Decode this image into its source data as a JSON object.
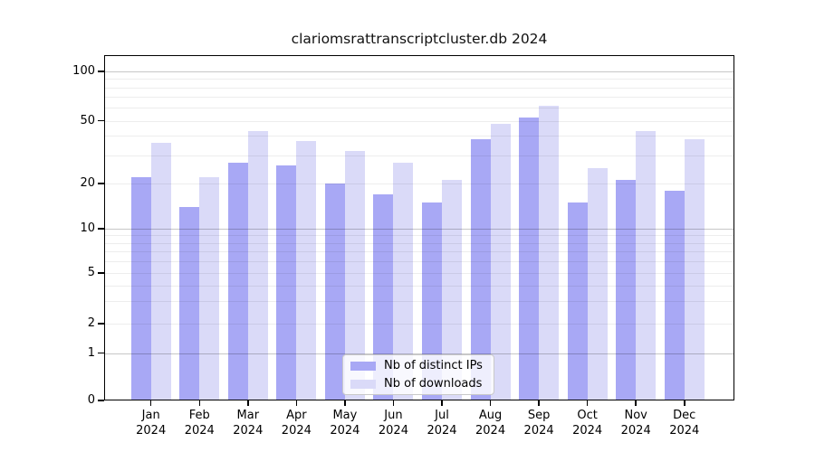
{
  "title": "clariomsrattranscriptcluster.db 2024",
  "legend": {
    "items": [
      {
        "label": "Nb of distinct IPs",
        "color": "#a8a8f5"
      },
      {
        "label": "Nb of downloads",
        "color": "#dadaf8"
      }
    ]
  },
  "colors": {
    "ips_bar": "#a8a8f5",
    "downloads_bar": "#dadaf8",
    "axis": "#000000",
    "major_grid": "#c6c6c6",
    "minor_grid": "#ededed"
  },
  "chart_data": {
    "type": "bar",
    "title": "clariomsrattranscriptcluster.db 2024",
    "categories": [
      "Jan 2024",
      "Feb 2024",
      "Mar 2024",
      "Apr 2024",
      "May 2024",
      "Jun 2024",
      "Jul 2024",
      "Aug 2024",
      "Sep 2024",
      "Oct 2024",
      "Nov 2024",
      "Dec 2024"
    ],
    "month_labels": [
      "Jan",
      "Feb",
      "Mar",
      "Apr",
      "May",
      "Jun",
      "Jul",
      "Aug",
      "Sep",
      "Oct",
      "Nov",
      "Dec"
    ],
    "year_label": "2024",
    "series": [
      {
        "name": "Nb of distinct IPs",
        "color": "#a8a8f5",
        "values": [
          22,
          14,
          27,
          26,
          20,
          17,
          15,
          38,
          52,
          15,
          21,
          18
        ]
      },
      {
        "name": "Nb of downloads",
        "color": "#dadaf8",
        "values": [
          36,
          22,
          43,
          37,
          32,
          27,
          21,
          48,
          62,
          25,
          43,
          38
        ]
      }
    ],
    "yscale": "symlog",
    "ylim": [
      0,
      127
    ],
    "yticks": [
      0,
      1,
      2,
      5,
      10,
      20,
      50,
      100
    ],
    "major_gridlines": [
      1,
      10,
      100
    ],
    "minor_gridlines": [
      2,
      3,
      4,
      5,
      6,
      7,
      8,
      9,
      20,
      30,
      40,
      50,
      60,
      70,
      80,
      90
    ],
    "grid": true,
    "legend_position": "lower center",
    "xlabel": "",
    "ylabel": ""
  }
}
